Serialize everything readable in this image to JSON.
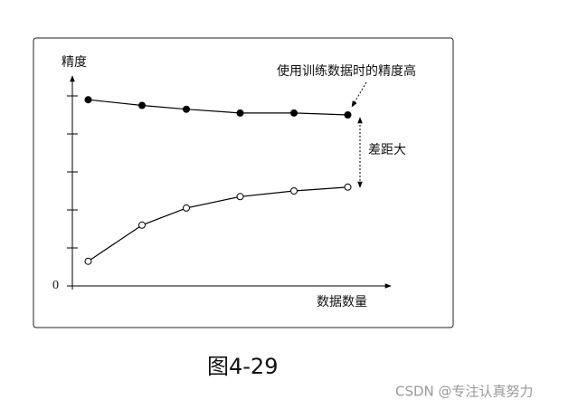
{
  "chart_data": {
    "type": "line",
    "y_label": "精度",
    "x_label": "数据数量",
    "annotations": [
      "使用训练数据时的精度高",
      "差距大"
    ],
    "caption": "图4-29",
    "watermark": "CSDN @专注认真努力",
    "xlim": [
      0,
      10
    ],
    "ylim": [
      0,
      5.5
    ],
    "yticks": [
      0
    ],
    "yticks_unlabeled": [
      1,
      2,
      3,
      4,
      5
    ],
    "series": [
      {
        "marker": "filled",
        "color": "#000000",
        "x": [
          0.5,
          2.2,
          3.6,
          5.3,
          7.0,
          8.7
        ],
        "values": [
          4.9,
          4.75,
          4.65,
          4.55,
          4.55,
          4.5
        ]
      },
      {
        "marker": "open",
        "color": "#000000",
        "x": [
          0.5,
          2.2,
          3.6,
          5.3,
          7.0,
          8.7
        ],
        "values": [
          0.65,
          1.6,
          2.05,
          2.35,
          2.5,
          2.6
        ]
      }
    ]
  }
}
